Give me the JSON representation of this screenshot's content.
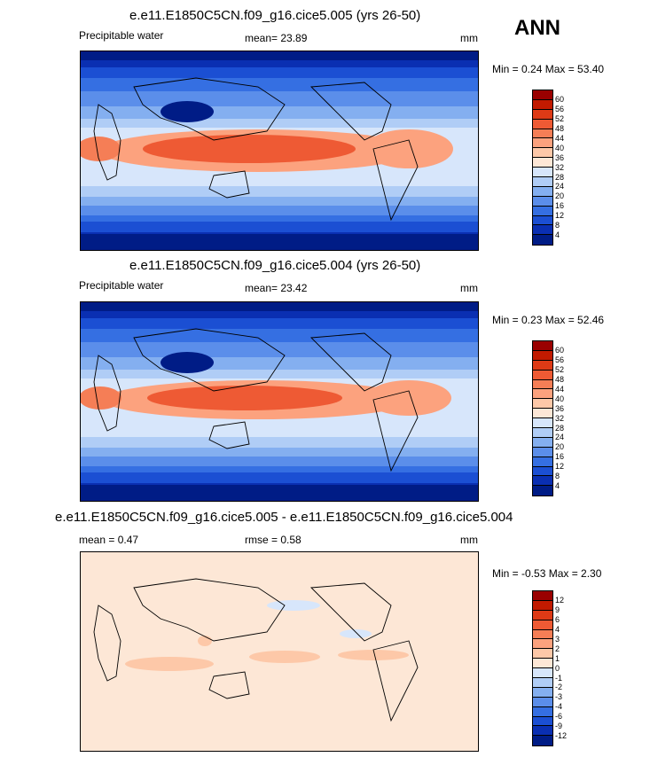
{
  "season": "ANN",
  "panels": [
    {
      "title": "e.e11.E1850C5CN.f09_g16.cice5.005 (yrs 26-50)",
      "left_label": "Precipitable water",
      "center_label": "mean=  23.89",
      "units": "mm",
      "minmax": "Min =   0.24 Max =  53.40",
      "levels": [
        "60",
        "56",
        "52",
        "48",
        "44",
        "40",
        "36",
        "32",
        "28",
        "24",
        "20",
        "16",
        "12",
        "8",
        "4"
      ],
      "colors": [
        "#9a0000",
        "#c21a00",
        "#de3a16",
        "#ee5a34",
        "#f57e56",
        "#fca27e",
        "#fdc8a8",
        "#fde7d6",
        "#d7e6fb",
        "#b0cdf6",
        "#84aff0",
        "#5b8eea",
        "#356fe2",
        "#1b4fd3",
        "#0a2fb2",
        "#001c86"
      ]
    },
    {
      "title": "e.e11.E1850C5CN.f09_g16.cice5.004 (yrs 26-50)",
      "left_label": "Precipitable water",
      "center_label": "mean=  23.42",
      "units": "mm",
      "minmax": "Min =   0.23 Max =  52.46",
      "levels": [
        "60",
        "56",
        "52",
        "48",
        "44",
        "40",
        "36",
        "32",
        "28",
        "24",
        "20",
        "16",
        "12",
        "8",
        "4"
      ],
      "colors": [
        "#9a0000",
        "#c21a00",
        "#de3a16",
        "#ee5a34",
        "#f57e56",
        "#fca27e",
        "#fdc8a8",
        "#fde7d6",
        "#d7e6fb",
        "#b0cdf6",
        "#84aff0",
        "#5b8eea",
        "#356fe2",
        "#1b4fd3",
        "#0a2fb2",
        "#001c86"
      ]
    },
    {
      "title": "e.e11.E1850C5CN.f09_g16.cice5.005 - e.e11.E1850C5CN.f09_g16.cice5.004",
      "left_label": "mean =   0.47",
      "center_label": "rmse =   0.58",
      "units": "mm",
      "minmax": "Min =  -0.53 Max =   2.30",
      "levels": [
        "12",
        "9",
        "6",
        "4",
        "3",
        "2",
        "1",
        "0",
        "-1",
        "-2",
        "-3",
        "-4",
        "-6",
        "-9",
        "-12"
      ],
      "colors": [
        "#9a0000",
        "#c21a00",
        "#de3a16",
        "#ee5a34",
        "#f57e56",
        "#fca27e",
        "#fdc8a8",
        "#fde7d6",
        "#d7e6fb",
        "#b0cdf6",
        "#84aff0",
        "#5b8eea",
        "#356fe2",
        "#1b4fd3",
        "#0a2fb2",
        "#001c86"
      ]
    }
  ]
}
